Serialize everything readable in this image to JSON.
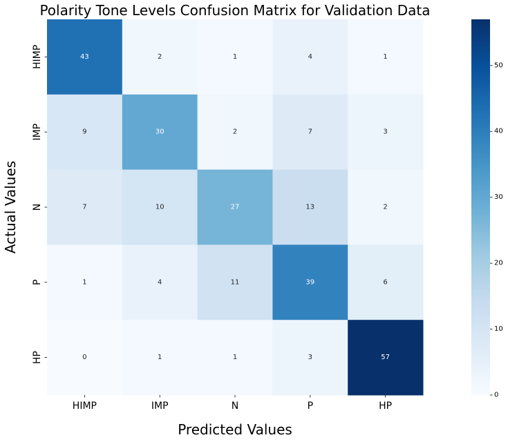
{
  "chart_data": {
    "type": "heatmap",
    "title": "Polarity Tone Levels Confusion Matrix for Validation Data",
    "xlabel": "Predicted Values",
    "ylabel": "Actual Values",
    "x_categories": [
      "HIMP",
      "IMP",
      "N",
      "P",
      "HP"
    ],
    "y_categories": [
      "HIMP",
      "IMP",
      "N",
      "P",
      "HP"
    ],
    "matrix": [
      [
        43,
        2,
        1,
        4,
        1
      ],
      [
        9,
        30,
        2,
        7,
        3
      ],
      [
        7,
        10,
        27,
        13,
        2
      ],
      [
        1,
        4,
        11,
        39,
        6
      ],
      [
        0,
        1,
        1,
        3,
        57
      ]
    ],
    "colorbar": {
      "min": 0,
      "max": 57,
      "ticks": [
        0,
        10,
        20,
        30,
        40,
        50
      ],
      "colormap": "Blues"
    },
    "grid": false
  }
}
